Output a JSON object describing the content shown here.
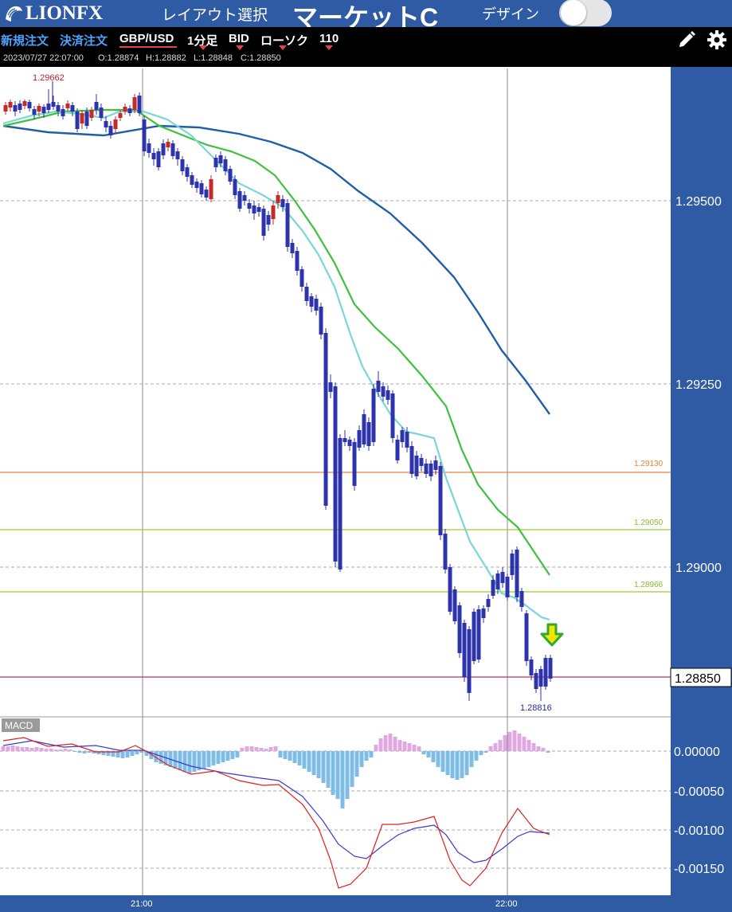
{
  "header": {
    "logo_text": "LIONFX",
    "layout_label": "レイアウト選択",
    "title": "マーケットC",
    "design_label": "デザイン",
    "design_toggle_on": false
  },
  "toolbar": {
    "new_order": "新規注文",
    "close_order": "決済注文",
    "pair": "GBP/USD",
    "timeframe": "1分足",
    "price_type": "BID",
    "chart_type": "ローソク",
    "bar_count": "110"
  },
  "info": {
    "datetime": "2023/07/27 22:07:00",
    "open": "O:1.28874",
    "high": "H:1.28882",
    "low": "L:1.28848",
    "close": "C:1.28850"
  },
  "chart": {
    "price_axis": [
      "1.29500",
      "1.29250",
      "1.29000"
    ],
    "current_price": "1.28850",
    "high_label": "1.29662",
    "low_label": "1.28816",
    "levels": [
      {
        "label": "1.29130",
        "color": "#e8823a"
      },
      {
        "label": "1.29050",
        "color": "#9acd32"
      },
      {
        "label": "1.28966",
        "color": "#9acd32"
      }
    ],
    "current_line_color": "#c0306a",
    "time_labels": [
      "21:00",
      "22:00"
    ],
    "macd_label": "MACD",
    "macd_axis": [
      "0.00000",
      "-0.00050",
      "-0.00100",
      "-0.00150"
    ],
    "signal_icon": "down-arrow-icon"
  }
}
